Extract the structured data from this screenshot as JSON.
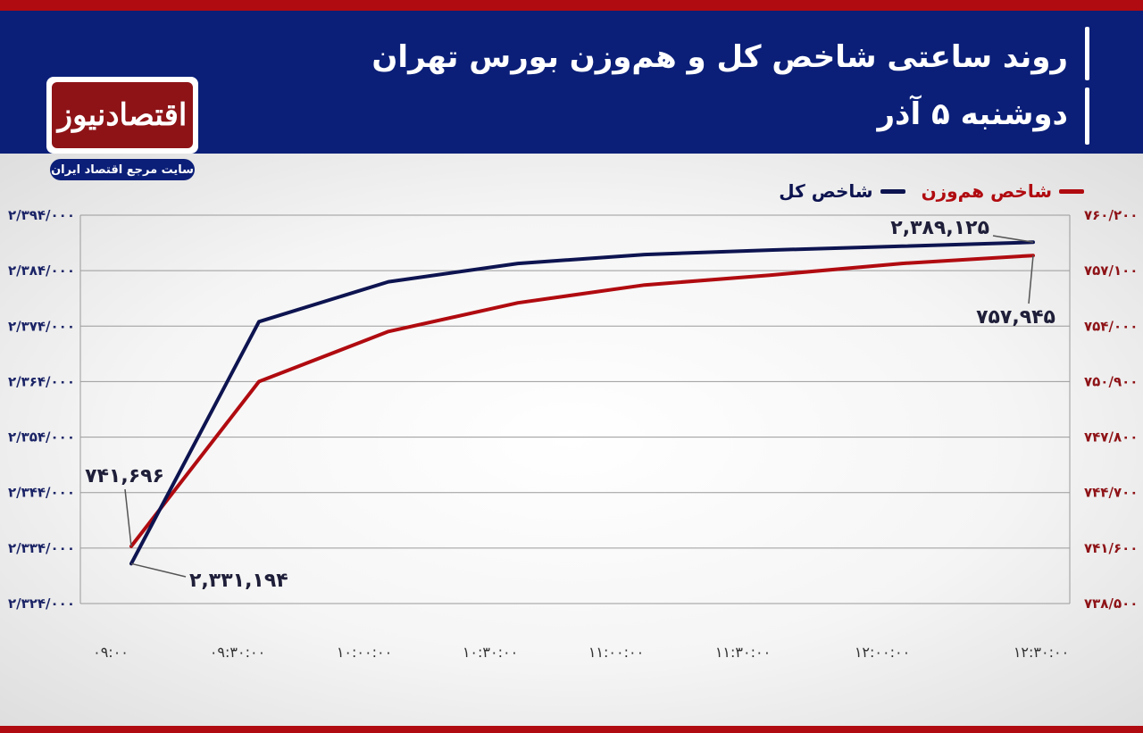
{
  "header": {
    "title": "روند ساعتی شاخص کل و هم‌وزن بورس تهران",
    "subtitle": "دوشنبه ۵ آذر"
  },
  "logo": {
    "name": "اقتصادنیوز",
    "tagline": "سایت مرجع اقتصاد ایران"
  },
  "colors": {
    "header_bg": "#0b1f78",
    "accent_red": "#b00b10",
    "series_total": "#0d1450",
    "series_equal": "#b00b10"
  },
  "chart_data": {
    "type": "line",
    "title": "روند ساعتی شاخص کل و هم‌وزن بورس تهران",
    "subtitle": "دوشنبه ۵ آذر",
    "x": [
      "۰۹:۰۰",
      "۰۹:۳۰:۰۰",
      "۱۰:۰۰:۰۰",
      "۱۰:۳۰:۰۰",
      "۱۱:۰۰:۰۰",
      "۱۱:۳۰:۰۰",
      "۱۲:۰۰:۰۰",
      "۱۲:۳۰:۰۰"
    ],
    "grid": true,
    "legend_position": "top-right",
    "series": [
      {
        "name": "شاخص کل",
        "axis": "left",
        "values": [
          2331194,
          2374800,
          2382000,
          2385300,
          2386900,
          2387700,
          2388400,
          2389125
        ]
      },
      {
        "name": "شاخص هم‌وزن",
        "axis": "right",
        "values": [
          741696,
          750900,
          753700,
          755300,
          756300,
          756850,
          757500,
          757945
        ]
      }
    ],
    "y_left": {
      "ylim": [
        2324000,
        2394000
      ],
      "ticks": [
        2324000,
        2334000,
        2344000,
        2354000,
        2364000,
        2374000,
        2384000,
        2394000
      ],
      "tick_labels": [
        "۲/۳۲۴/۰۰۰",
        "۲/۳۳۴/۰۰۰",
        "۲/۳۴۴/۰۰۰",
        "۲/۳۵۴/۰۰۰",
        "۲/۳۶۴/۰۰۰",
        "۲/۳۷۴/۰۰۰",
        "۲/۳۸۴/۰۰۰",
        "۲/۳۹۴/۰۰۰"
      ]
    },
    "y_right": {
      "ylim": [
        738500,
        760200
      ],
      "ticks": [
        738500,
        741600,
        744700,
        747800,
        750900,
        754000,
        757100,
        760200
      ],
      "tick_labels": [
        "۷۳۸/۵۰۰",
        "۷۴۱/۶۰۰",
        "۷۴۴/۷۰۰",
        "۷۴۷/۸۰۰",
        "۷۵۰/۹۰۰",
        "۷۵۴/۰۰۰",
        "۷۵۷/۱۰۰",
        "۷۶۰/۲۰۰"
      ]
    },
    "annotations": [
      {
        "text": "۲,۳۸۹,۱۲۵",
        "series": 0,
        "index": 7
      },
      {
        "text": "۷۵۷,۹۴۵",
        "series": 1,
        "index": 7
      },
      {
        "text": "۷۴۱,۶۹۶",
        "series": 1,
        "index": 0
      },
      {
        "text": "۲,۳۳۱,۱۹۴",
        "series": 0,
        "index": 0
      }
    ]
  }
}
